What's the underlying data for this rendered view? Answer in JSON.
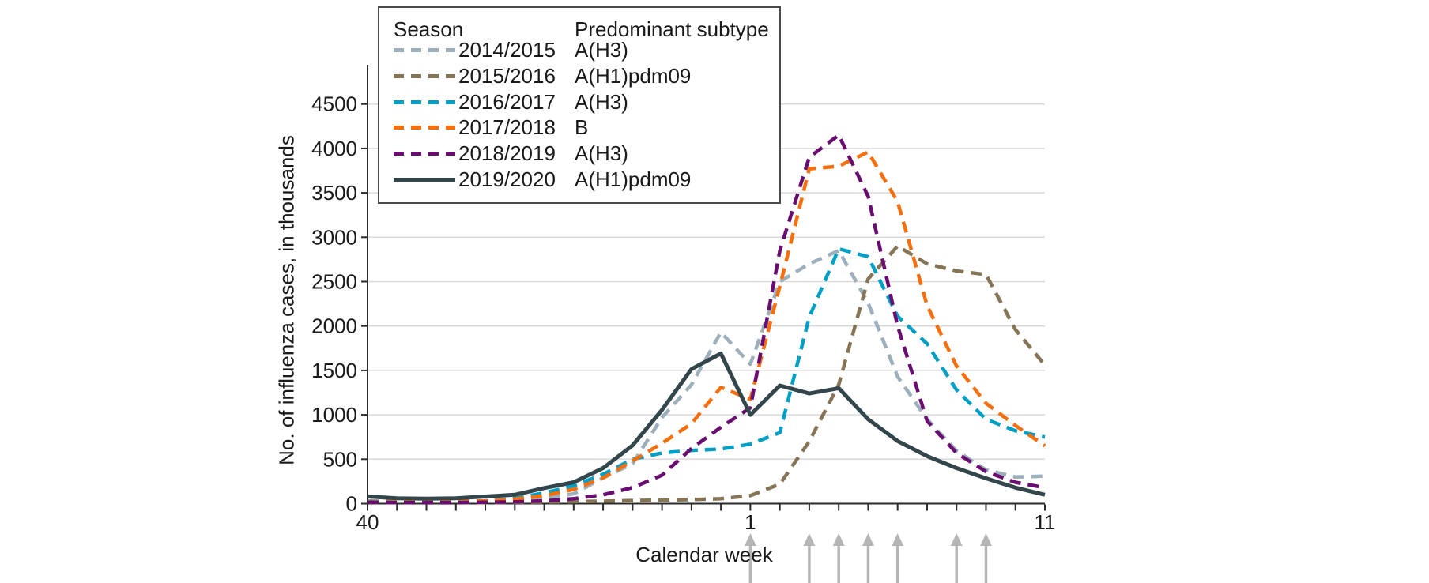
{
  "legend": {
    "season_header": "Season",
    "subtype_header": "Predominant subtype"
  },
  "chart_data": {
    "type": "line",
    "title": "",
    "xlabel": "Calendar week",
    "ylabel": "No. of influenza cases, in thousands",
    "ylim": [
      0,
      4500
    ],
    "y_ticks": [
      0,
      500,
      1000,
      1500,
      2000,
      2500,
      3000,
      3500,
      4000,
      4500
    ],
    "grid": true,
    "legend_position": "top-left",
    "x_weeks": [
      40,
      41,
      42,
      43,
      44,
      45,
      46,
      47,
      48,
      49,
      50,
      51,
      52,
      1,
      2,
      3,
      4,
      5,
      6,
      7,
      8,
      9,
      10,
      11
    ],
    "x_tick_labels": [
      {
        "week": 40,
        "label": "40"
      },
      {
        "week": 1,
        "label": "1"
      },
      {
        "week": 11,
        "label": "11"
      }
    ],
    "arrow_weeks": [
      1,
      3,
      4,
      5,
      6,
      8,
      9
    ],
    "arrow_color": "#b5b5b5",
    "grid_color": "#d9d9d9",
    "axis_color": "#2b2b2b",
    "series": [
      {
        "name": "2014/2015",
        "subtype": "A(H3)",
        "color": "#9dafba",
        "style": "dashed",
        "values": [
          30,
          25,
          25,
          25,
          30,
          40,
          60,
          110,
          290,
          450,
          970,
          1340,
          1930,
          1570,
          2500,
          2700,
          2850,
          2260,
          1430,
          950,
          595,
          380,
          300,
          310
        ]
      },
      {
        "name": "2015/2016",
        "subtype": "A(H1)pdm09",
        "color": "#857455",
        "style": "dashed",
        "values": [
          15,
          12,
          10,
          10,
          12,
          15,
          18,
          22,
          28,
          35,
          40,
          45,
          55,
          90,
          220,
          700,
          1340,
          2530,
          2900,
          2700,
          2620,
          2580,
          1960,
          1560
        ]
      },
      {
        "name": "2016/2017",
        "subtype": "A(H3)",
        "color": "#009fc6",
        "style": "dashed",
        "values": [
          25,
          22,
          22,
          25,
          30,
          60,
          120,
          200,
          330,
          500,
          570,
          600,
          615,
          670,
          800,
          2100,
          2870,
          2780,
          2110,
          1800,
          1280,
          950,
          820,
          750
        ]
      },
      {
        "name": "2017/2018",
        "subtype": "B",
        "color": "#f76f0d",
        "style": "dashed",
        "values": [
          20,
          18,
          18,
          20,
          30,
          50,
          90,
          160,
          290,
          480,
          680,
          900,
          1310,
          1175,
          2450,
          3770,
          3800,
          3960,
          3400,
          2230,
          1550,
          1130,
          880,
          650
        ]
      },
      {
        "name": "2018/2019",
        "subtype": "A(H3)",
        "color": "#6a0d70",
        "style": "dashed",
        "values": [
          15,
          12,
          12,
          12,
          15,
          20,
          30,
          55,
          100,
          180,
          320,
          620,
          860,
          1080,
          2850,
          3900,
          4150,
          3460,
          2000,
          930,
          570,
          360,
          240,
          180
        ]
      },
      {
        "name": "2019/2020",
        "subtype": "A(H1)pdm09",
        "color": "#32464c",
        "style": "solid",
        "values": [
          80,
          60,
          55,
          60,
          80,
          100,
          175,
          240,
          400,
          655,
          1055,
          1515,
          1690,
          1000,
          1330,
          1240,
          1300,
          950,
          705,
          535,
          400,
          285,
          180,
          100
        ]
      }
    ]
  }
}
